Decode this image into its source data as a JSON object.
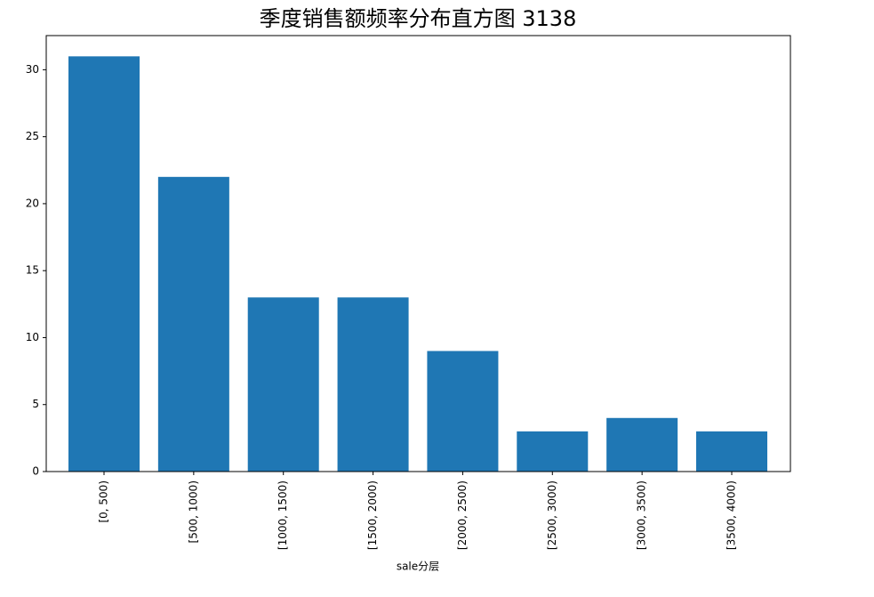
{
  "chart_data": {
    "type": "bar",
    "title": "季度销售额频率分布直方图 3138",
    "x_label": "sale分层",
    "categories": [
      "[0, 500)",
      "[500, 1000)",
      "[1000, 1500)",
      "[1500, 2000)",
      "[2000, 2500)",
      "[2500, 3000)",
      "[3000, 3500)",
      "[3500, 4000)"
    ],
    "values": [
      31,
      22,
      13,
      13,
      9,
      3,
      4,
      3
    ],
    "color": "#1f77b4",
    "ylim": [
      0,
      32.55
    ],
    "yticks": [
      0,
      5,
      10,
      15,
      20,
      25,
      30
    ]
  }
}
